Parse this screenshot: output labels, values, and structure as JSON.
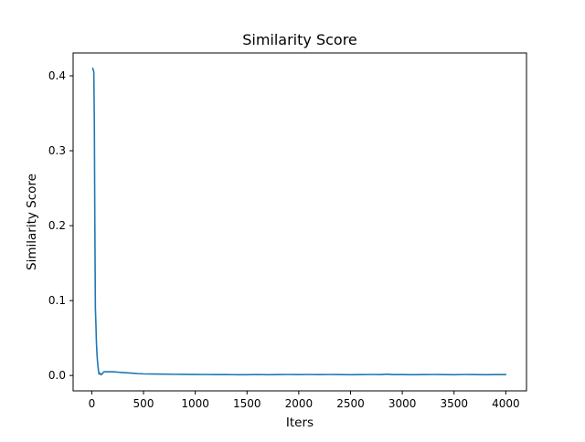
{
  "chart_data": {
    "type": "line",
    "title": "Similarity Score",
    "xlabel": "Iters",
    "ylabel": "Similarity Score",
    "xlim": [
      -180,
      4200
    ],
    "ylim": [
      -0.0205,
      0.4305
    ],
    "xticks": [
      0,
      500,
      1000,
      1500,
      2000,
      2500,
      3000,
      3500,
      4000
    ],
    "xtick_labels": [
      "0",
      "500",
      "1000",
      "1500",
      "2000",
      "2500",
      "3000",
      "3500",
      "4000"
    ],
    "yticks": [
      0.0,
      0.1,
      0.2,
      0.3,
      0.4
    ],
    "ytick_labels": [
      "0.0",
      "0.1",
      "0.2",
      "0.3",
      "0.4"
    ],
    "grid": false,
    "series": [
      {
        "color": "#1f77b4",
        "x": [
          10,
          20,
          25,
          30,
          35,
          40,
          45,
          50,
          55,
          60,
          70,
          80,
          90,
          100,
          110,
          120,
          130,
          140,
          160,
          180,
          200,
          250,
          300,
          350,
          400,
          450,
          500,
          600,
          700,
          800,
          900,
          1000,
          1100,
          1200,
          1300,
          1400,
          1500,
          1600,
          1700,
          1800,
          1900,
          2000,
          2100,
          2200,
          2300,
          2400,
          2500,
          2600,
          2700,
          2800,
          2850,
          2900,
          3000,
          3100,
          3200,
          3300,
          3400,
          3500,
          3600,
          3700,
          3800,
          3900,
          4000
        ],
        "values": [
          0.41,
          0.405,
          0.34,
          0.2,
          0.09,
          0.07,
          0.045,
          0.03,
          0.02,
          0.012,
          0.002,
          0.003,
          0.001,
          0.002,
          0.004,
          0.005,
          0.005,
          0.005,
          0.005,
          0.005,
          0.005,
          0.0045,
          0.004,
          0.0035,
          0.003,
          0.0025,
          0.0022,
          0.002,
          0.0018,
          0.0016,
          0.0015,
          0.0014,
          0.0013,
          0.0012,
          0.0012,
          0.0011,
          0.0011,
          0.0013,
          0.0011,
          0.0012,
          0.0013,
          0.0012,
          0.0013,
          0.0012,
          0.0013,
          0.0012,
          0.0011,
          0.0012,
          0.0013,
          0.0012,
          0.0018,
          0.0012,
          0.0012,
          0.0011,
          0.0012,
          0.0013,
          0.0012,
          0.0011,
          0.0013,
          0.0012,
          0.0011,
          0.0012,
          0.0012
        ]
      }
    ]
  }
}
